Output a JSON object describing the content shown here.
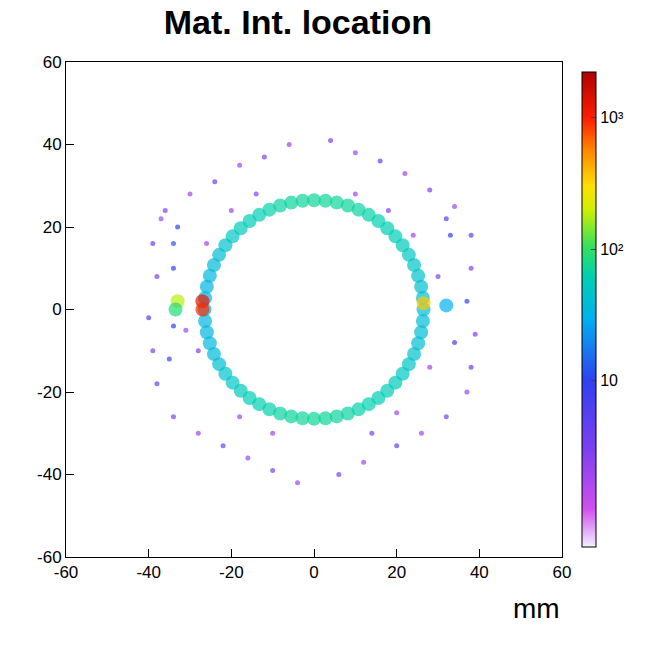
{
  "chart_data": {
    "type": "histogram2d",
    "title": "Mat. Int. location",
    "x_label": "mm",
    "xlim": [
      -60,
      60
    ],
    "ylim": [
      -60,
      60
    ],
    "xticks": [
      -60,
      -40,
      -20,
      0,
      20,
      40,
      60
    ],
    "yticks": [
      -60,
      -40,
      -20,
      0,
      20,
      40,
      60
    ],
    "cells": {
      "x": [
        26.5,
        26.35,
        25.92,
        25.2,
        24.21,
        22.95,
        21.44,
        19.69,
        17.73,
        15.58,
        13.25,
        10.78,
        8.19,
        5.51,
        2.77,
        0,
        -2.77,
        -5.51,
        -8.19,
        -10.78,
        -13.25,
        -15.58,
        -17.73,
        -19.69,
        -21.44,
        -22.95,
        -24.21,
        -25.2,
        -25.92,
        -26.35,
        -26.5,
        -26.35,
        -25.92,
        -25.2,
        -24.21,
        -22.95,
        -21.44,
        -19.69,
        -17.73,
        -15.58,
        -13.25,
        -10.78,
        -8.19,
        -5.51,
        -2.77,
        0,
        2.77,
        5.51,
        8.19,
        10.78,
        13.25,
        15.58,
        17.73,
        19.69,
        21.44,
        22.95,
        24.21,
        25.2,
        25.92,
        26.35,
        -36,
        -30,
        -24,
        -18,
        -12,
        -6,
        4,
        10,
        16,
        22,
        28,
        34,
        38,
        38,
        37,
        39,
        38,
        37,
        32,
        26,
        20,
        12,
        6,
        -4,
        -10,
        -16,
        -22,
        -28,
        -34,
        -38,
        -39,
        -40,
        -38,
        -39,
        -37,
        -34,
        -34,
        -34,
        -35,
        -33,
        33,
        34,
        32,
        -20,
        -14,
        10,
        18,
        24,
        -26,
        28,
        -28,
        -10,
        14,
        -18,
        20,
        30,
        -31,
        -27,
        -27,
        26.5,
        -33,
        -33.5,
        32
      ],
      "y": [
        0,
        2.77,
        5.51,
        8.19,
        10.78,
        13.25,
        15.58,
        17.73,
        19.69,
        21.44,
        22.95,
        24.21,
        25.2,
        25.92,
        26.35,
        26.5,
        26.35,
        25.92,
        25.2,
        24.21,
        22.95,
        21.44,
        19.69,
        17.73,
        15.58,
        13.25,
        10.78,
        8.19,
        5.51,
        2.77,
        0,
        -2.77,
        -5.51,
        -8.19,
        -10.78,
        -13.25,
        -15.58,
        -17.73,
        -19.69,
        -21.44,
        -22.95,
        -24.21,
        -25.2,
        -25.92,
        -26.35,
        -26.5,
        -26.35,
        -25.92,
        -25.2,
        -24.21,
        -22.95,
        -21.44,
        -19.69,
        -17.73,
        -15.58,
        -13.25,
        -10.78,
        -8.19,
        -5.51,
        -2.77,
        24,
        28,
        31,
        35,
        37,
        40,
        41,
        38,
        36,
        33,
        29,
        25,
        18,
        10,
        2,
        -6,
        -14,
        -20,
        -26,
        -30,
        -33,
        -37,
        -40,
        -42,
        -39,
        -36,
        -33,
        -30,
        -26,
        -18,
        -10,
        -2,
        8,
        16,
        22,
        16,
        10,
        -4,
        -12,
        20,
        18,
        -8,
        22,
        24,
        28,
        28,
        24,
        18,
        16,
        -14,
        -10,
        -30,
        -30,
        -26,
        -25,
        8,
        -5,
        2,
        0,
        1.5,
        2,
        0,
        1
      ],
      "counts": [
        40,
        40,
        42,
        45,
        48,
        50,
        55,
        58,
        60,
        62,
        65,
        68,
        70,
        72,
        72,
        72,
        72,
        70,
        68,
        65,
        62,
        58,
        55,
        50,
        46,
        42,
        38,
        36,
        35,
        35,
        35,
        35,
        35,
        36,
        38,
        42,
        46,
        50,
        55,
        58,
        62,
        65,
        68,
        70,
        72,
        72,
        72,
        70,
        68,
        65,
        62,
        60,
        58,
        55,
        50,
        48,
        45,
        42,
        40,
        40,
        3,
        2,
        4,
        2,
        3,
        2,
        3,
        2,
        4,
        2,
        3,
        2,
        5,
        3,
        8,
        3,
        4,
        2,
        3,
        2,
        4,
        2,
        3,
        2,
        3,
        2,
        4,
        2,
        3,
        4,
        3,
        6,
        3,
        4,
        2,
        12,
        10,
        10,
        8,
        10,
        9,
        8,
        6,
        2,
        3,
        2,
        3,
        2,
        2,
        2,
        3,
        2,
        3,
        2,
        2,
        3,
        2,
        1200,
        900,
        350,
        180,
        90,
        30
      ]
    },
    "colorbar": {
      "range": [
        0.55,
        2200
      ],
      "log": true,
      "ticks": [
        {
          "value": 10,
          "label": "10"
        },
        {
          "value": 100,
          "label": "10²"
        },
        {
          "value": 1000,
          "label": "10³"
        }
      ]
    }
  }
}
